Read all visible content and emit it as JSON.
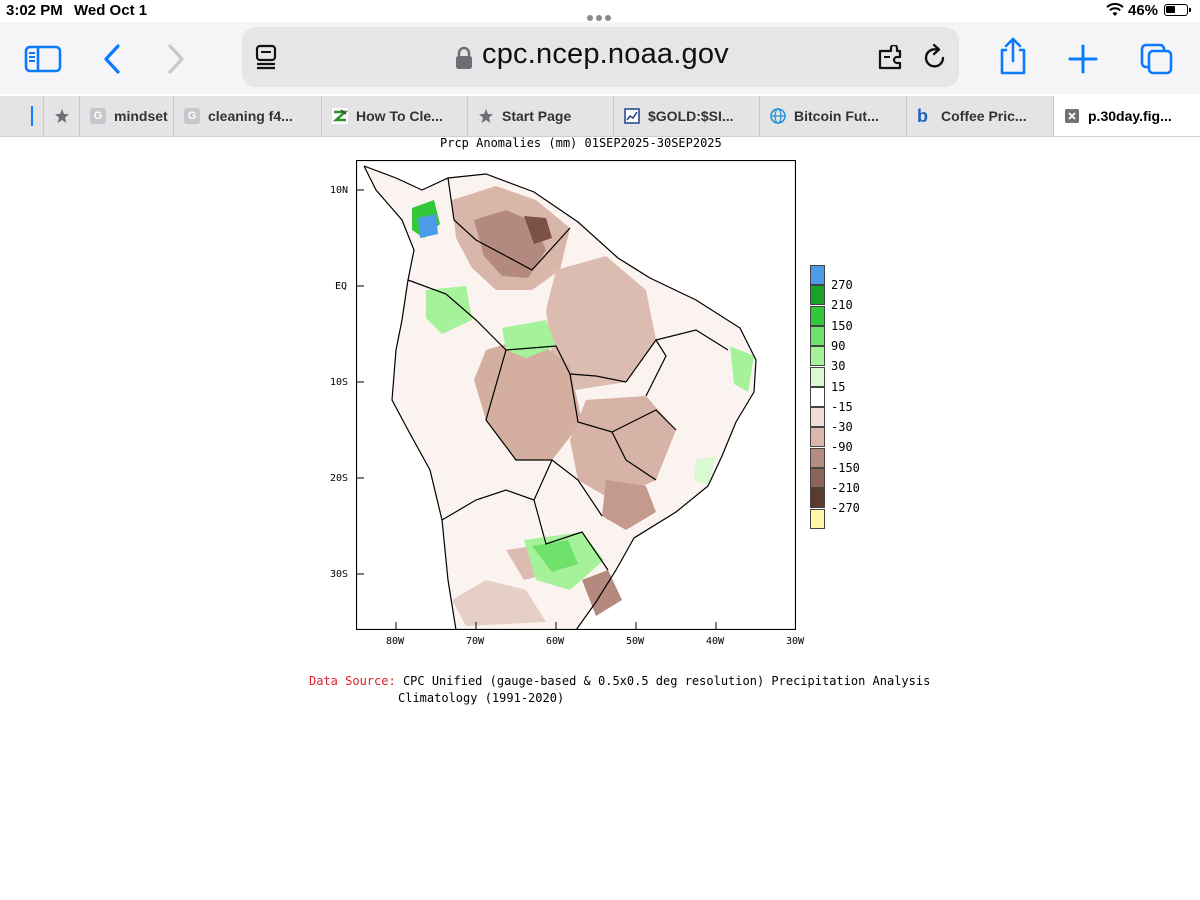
{
  "status_bar": {
    "time": "3:02 PM",
    "date": "Wed Oct 1",
    "battery": "46%",
    "battery_level": 0.46
  },
  "toolbar": {
    "url": "cpc.ncep.noaa.gov"
  },
  "tabs": [
    {
      "label": "",
      "icon": "blank-icon"
    },
    {
      "label": "",
      "icon": "star-icon"
    },
    {
      "label": "mindset",
      "icon": "g-favicon"
    },
    {
      "label": "cleaning f4...",
      "icon": "g-favicon"
    },
    {
      "label": "How To Cle...",
      "icon": "zillow-favicon"
    },
    {
      "label": "Start Page",
      "icon": "star-icon"
    },
    {
      "label": "$GOLD:$SI...",
      "icon": "chart-favicon"
    },
    {
      "label": "Bitcoin Fut...",
      "icon": "globe-icon"
    },
    {
      "label": "Coffee Pric...",
      "icon": "b-favicon"
    },
    {
      "label": "p.30day.fig...",
      "icon": "close-icon",
      "active": true
    }
  ],
  "figure": {
    "title": "Prcp Anomalies (mm) 01SEP2025-30SEP2025",
    "lat_labels": [
      "10N",
      "EQ",
      "10S",
      "20S",
      "30S"
    ],
    "lon_labels": [
      "80W",
      "70W",
      "60W",
      "50W",
      "40W",
      "30W"
    ],
    "legend": {
      "labels": [
        "270",
        "210",
        "150",
        "90",
        "30",
        "15",
        "-15",
        "-30",
        "-90",
        "-150",
        "-210",
        "-270"
      ],
      "colors": [
        "#4c9be8",
        "#17a32a",
        "#32c83a",
        "#6ee26a",
        "#a6f29a",
        "#d8f9d2",
        "#ffffff",
        "#f1ddd6",
        "#dcb8ac",
        "#b58c80",
        "#8d6458",
        "#5b3a2f",
        "#fff8a8"
      ]
    },
    "source_label": "Data Source:",
    "source_text": "CPC Unified (gauge-based & 0.5x0.5 deg resolution) Precipitation Analysis",
    "source_line2": "Climatology (1991-2020)"
  }
}
